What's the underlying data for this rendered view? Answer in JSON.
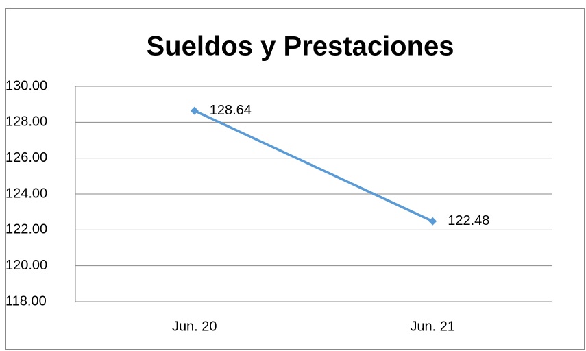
{
  "chart_data": {
    "type": "line",
    "title": "Sueldos y Prestaciones",
    "categories": [
      "Jun. 20",
      "Jun. 21"
    ],
    "series": [
      {
        "name": "Sueldos y Prestaciones",
        "color": "#5b9bd5",
        "values": [
          128.64,
          122.48
        ]
      }
    ],
    "ylim": [
      118,
      130
    ],
    "yticks": [
      {
        "value": 118,
        "label": "118.00"
      },
      {
        "value": 120,
        "label": "120.00"
      },
      {
        "value": 122,
        "label": "122.00"
      },
      {
        "value": 124,
        "label": "124.00"
      },
      {
        "value": 126,
        "label": "126.00"
      },
      {
        "value": 128,
        "label": "128.00"
      },
      {
        "value": 130,
        "label": "130.00"
      }
    ],
    "grid": true,
    "legend": false,
    "data_labels": true
  }
}
